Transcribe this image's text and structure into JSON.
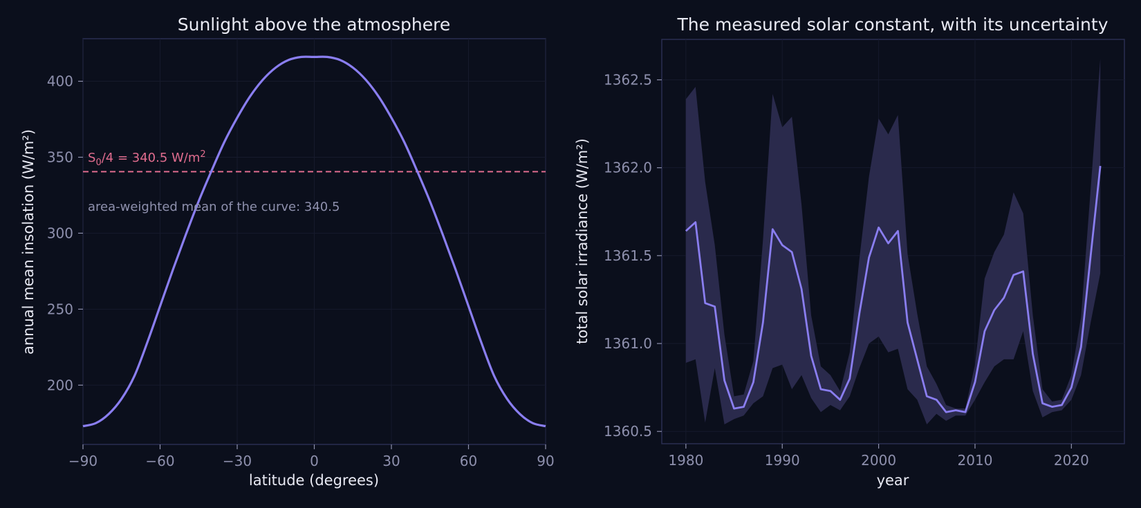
{
  "colors": {
    "background": "#0b0f1c",
    "frame": "#2a2e52",
    "grid": "#161a2c",
    "curve": "#8a7ef0",
    "band": "#2a2a4c",
    "reference": "#e06c8e",
    "title_text": "#e8e9f3",
    "tick_text": "#8e90ad"
  },
  "chart_data": [
    {
      "type": "line",
      "title": "Sunlight above the atmosphere",
      "xlabel": "latitude (degrees)",
      "ylabel": "annual mean insolation (W/m²)",
      "xlim": [
        -90,
        90
      ],
      "ylim": [
        161,
        428
      ],
      "xticks": [
        -90,
        -60,
        -30,
        0,
        30,
        60,
        90
      ],
      "xtick_labels": [
        "−90",
        "−60",
        "−30",
        "0",
        "30",
        "60",
        "90"
      ],
      "yticks": [
        200,
        250,
        300,
        350,
        400
      ],
      "ytick_labels": [
        "200",
        "250",
        "300",
        "350",
        "400"
      ],
      "grid": true,
      "series": [
        {
          "x": [
            -90,
            -85,
            -80,
            -75,
            -70,
            -65,
            -60,
            -55,
            -50,
            -45,
            -40,
            -35,
            -30,
            -25,
            -20,
            -15,
            -10,
            -5,
            0,
            5,
            10,
            15,
            20,
            25,
            30,
            35,
            40,
            45,
            50,
            55,
            60,
            65,
            70,
            75,
            80,
            85,
            90
          ],
          "y": [
            173,
            175,
            181,
            191,
            206,
            228,
            252,
            276,
            299,
            321,
            341,
            360,
            376,
            390,
            401,
            409,
            414,
            416,
            416,
            416,
            414,
            409,
            401,
            390,
            376,
            360,
            341,
            321,
            299,
            276,
            252,
            228,
            206,
            191,
            181,
            175,
            173
          ]
        }
      ],
      "reference_line": {
        "y": 340.5,
        "label_base": "S",
        "label_sub": "0",
        "label_mid": "/4 = 340.5 W/m",
        "label_sup": "2"
      },
      "annotation": "area-weighted mean of the curve: 340.5"
    },
    {
      "type": "area",
      "title": "The measured solar constant, with its uncertainty",
      "xlabel": "year",
      "ylabel": "total solar irradiance (W/m²)",
      "xlim": [
        1977.5,
        2025.5
      ],
      "ylim": [
        1360.43,
        1362.73
      ],
      "xticks": [
        1980,
        1990,
        2000,
        2010,
        2020
      ],
      "xtick_labels": [
        "1980",
        "1990",
        "2000",
        "2010",
        "2020"
      ],
      "yticks": [
        1360.5,
        1361.0,
        1361.5,
        1362.0,
        1362.5
      ],
      "ytick_labels": [
        "1360.5",
        "1361.0",
        "1361.5",
        "1362.0",
        "1362.5"
      ],
      "grid": true,
      "x": [
        1980,
        1981,
        1982,
        1983,
        1984,
        1985,
        1986,
        1987,
        1988,
        1989,
        1990,
        1991,
        1992,
        1993,
        1994,
        1995,
        1996,
        1997,
        1998,
        1999,
        2000,
        2001,
        2002,
        2003,
        2004,
        2005,
        2006,
        2007,
        2008,
        2009,
        2010,
        2011,
        2012,
        2013,
        2014,
        2015,
        2016,
        2017,
        2018,
        2019,
        2020,
        2021,
        2022,
        2023
      ],
      "series": [
        {
          "y": [
            1361.64,
            1361.69,
            1361.23,
            1361.21,
            1360.79,
            1360.63,
            1360.64,
            1360.78,
            1361.12,
            1361.65,
            1361.56,
            1361.52,
            1361.31,
            1360.93,
            1360.74,
            1360.73,
            1360.68,
            1360.8,
            1361.17,
            1361.49,
            1361.66,
            1361.57,
            1361.64,
            1361.12,
            1360.91,
            1360.7,
            1360.68,
            1360.61,
            1360.62,
            1360.61,
            1360.78,
            1361.07,
            1361.19,
            1361.26,
            1361.39,
            1361.41,
            1360.94,
            1360.66,
            1360.64,
            1360.65,
            1360.75,
            1360.98,
            1361.5,
            1362.01
          ]
        }
      ],
      "band": {
        "lower": [
          1360.89,
          1360.91,
          1360.55,
          1360.86,
          1360.54,
          1360.57,
          1360.59,
          1360.66,
          1360.7,
          1360.86,
          1360.88,
          1360.74,
          1360.82,
          1360.69,
          1360.61,
          1360.65,
          1360.62,
          1360.7,
          1360.86,
          1361.0,
          1361.04,
          1360.95,
          1360.97,
          1360.74,
          1360.68,
          1360.54,
          1360.6,
          1360.56,
          1360.59,
          1360.59,
          1360.68,
          1360.78,
          1360.87,
          1360.91,
          1360.91,
          1361.07,
          1360.73,
          1360.58,
          1360.61,
          1360.62,
          1360.68,
          1360.82,
          1361.12,
          1361.4
        ],
        "upper": [
          1362.39,
          1362.46,
          1361.92,
          1361.56,
          1361.05,
          1360.7,
          1360.71,
          1360.9,
          1361.59,
          1362.42,
          1362.23,
          1362.29,
          1361.79,
          1361.16,
          1360.87,
          1360.82,
          1360.73,
          1360.95,
          1361.48,
          1361.95,
          1362.28,
          1362.19,
          1362.3,
          1361.51,
          1361.17,
          1360.87,
          1360.77,
          1360.65,
          1360.63,
          1360.63,
          1360.88,
          1361.37,
          1361.52,
          1361.62,
          1361.86,
          1361.74,
          1361.16,
          1360.74,
          1360.67,
          1360.68,
          1360.82,
          1361.15,
          1361.88,
          1362.62
        ]
      }
    }
  ]
}
